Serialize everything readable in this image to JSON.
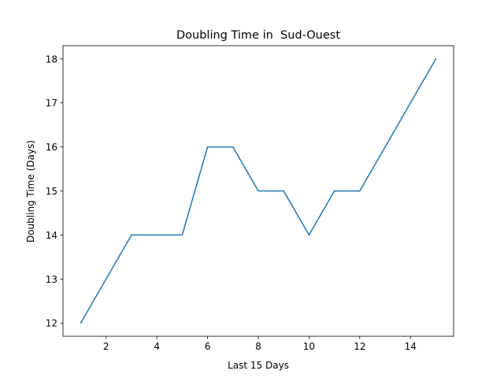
{
  "chart_data": {
    "type": "line",
    "title": "Doubling Time in  Sud-Ouest",
    "xlabel": "Last 15 Days",
    "ylabel": "Doubling Time (Days)",
    "x": [
      1,
      2,
      3,
      4,
      5,
      6,
      7,
      8,
      9,
      10,
      11,
      12,
      13,
      14,
      15
    ],
    "series": [
      {
        "values": [
          12,
          13,
          14,
          14,
          14,
          16,
          16,
          15,
          15,
          14,
          15,
          15,
          16,
          17,
          18
        ],
        "color": "#1f77b4"
      }
    ],
    "xlim": [
      0.3,
      15.7
    ],
    "ylim": [
      11.7,
      18.3
    ],
    "xticks": [
      2,
      4,
      6,
      8,
      10,
      12,
      14
    ],
    "yticks": [
      12,
      13,
      14,
      15,
      16,
      17,
      18
    ],
    "grid": false,
    "legend": "none"
  }
}
